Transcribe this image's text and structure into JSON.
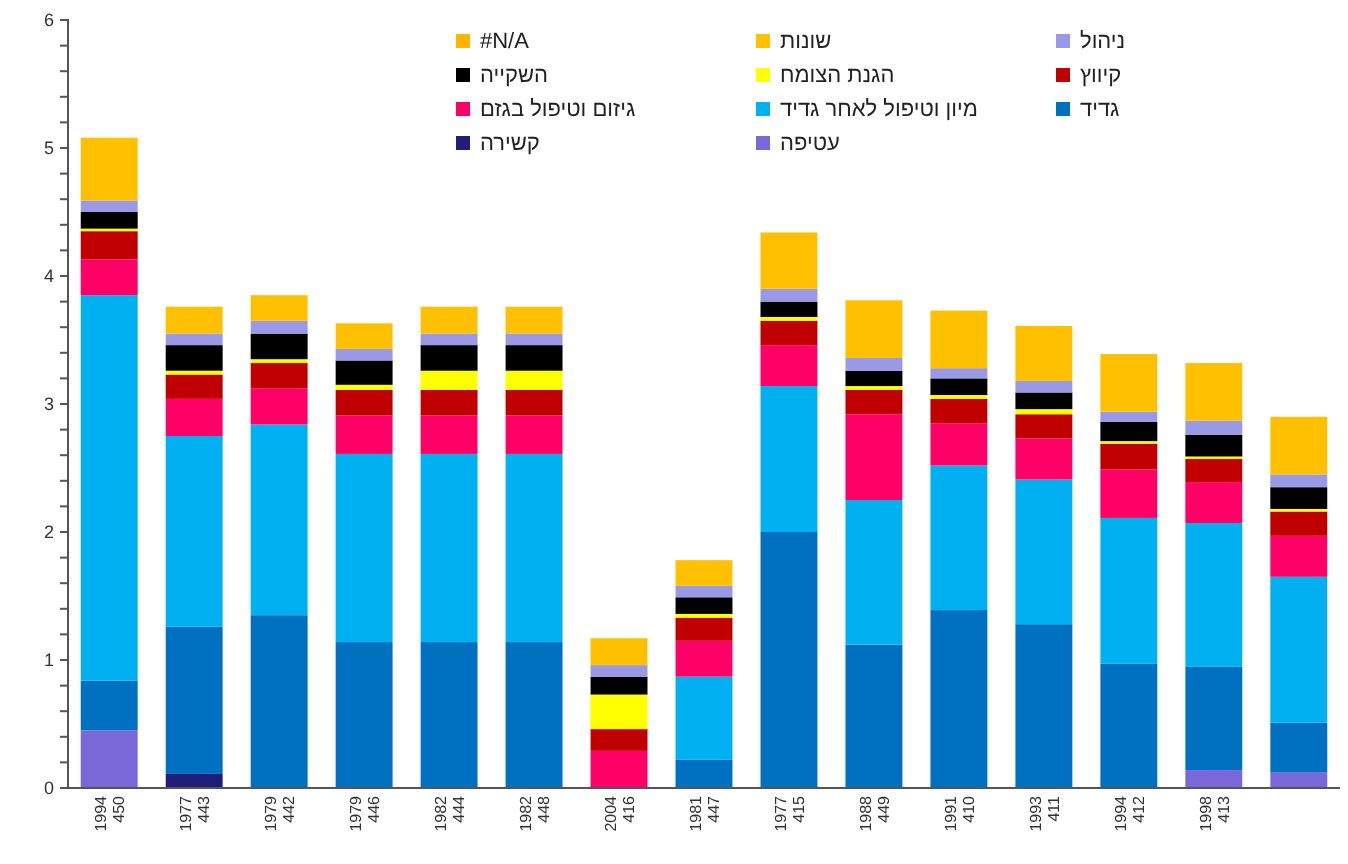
{
  "chart_data": {
    "type": "bar",
    "stacked": true,
    "categories": [
      "1994\n450",
      "1977\n443",
      "1979\n442",
      "1979\n446",
      "1982\n444",
      "1982\n448",
      "2004\n416",
      "1981\n447",
      "1977\n415",
      "1988\n449",
      "1991\n410",
      "1993\n411",
      "1994\n412",
      "1998\n413",
      null
    ],
    "series": [
      {
        "name": "עטיפה",
        "color": "#7b68d8",
        "values": [
          0.45,
          0,
          0,
          0,
          0,
          0,
          0,
          0,
          0,
          0,
          0,
          0,
          0,
          0.14,
          0.12
        ]
      },
      {
        "name": "קשירה",
        "color": "#1f1f7a",
        "values": [
          0,
          0.11,
          0,
          0,
          0,
          0,
          0,
          0,
          0,
          0,
          0,
          0,
          0,
          0,
          0
        ]
      },
      {
        "name": "גדיד",
        "color": "#0070c0",
        "values": [
          0.39,
          1.15,
          1.35,
          1.14,
          1.14,
          1.14,
          0,
          0.22,
          2.0,
          1.12,
          1.39,
          1.28,
          0.97,
          0.81,
          0.39
        ]
      },
      {
        "name": "מיון וטיפול לאחר גדיד",
        "color": "#00b0f0",
        "values": [
          3.01,
          1.49,
          1.49,
          1.47,
          1.47,
          1.47,
          0,
          0.65,
          1.14,
          1.13,
          1.13,
          1.13,
          1.14,
          1.12,
          1.14
        ]
      },
      {
        "name": "גיזום וטיפול בגזם",
        "color": "#ff0066",
        "values": [
          0.28,
          0.29,
          0.28,
          0.3,
          0.3,
          0.3,
          0.29,
          0.28,
          0.32,
          0.67,
          0.33,
          0.32,
          0.38,
          0.32,
          0.32
        ]
      },
      {
        "name": "קיווץ",
        "color": "#c00000",
        "values": [
          0.22,
          0.19,
          0.2,
          0.2,
          0.2,
          0.2,
          0.17,
          0.18,
          0.19,
          0.19,
          0.19,
          0.19,
          0.2,
          0.18,
          0.19
        ]
      },
      {
        "name": "הגנת הצומח",
        "color": "#ffff00",
        "values": [
          0.02,
          0.03,
          0.03,
          0.04,
          0.15,
          0.15,
          0.27,
          0.03,
          0.03,
          0.03,
          0.03,
          0.04,
          0.02,
          0.02,
          0.02
        ]
      },
      {
        "name": "השקייה",
        "color": "#000000",
        "values": [
          0.13,
          0.2,
          0.2,
          0.19,
          0.2,
          0.2,
          0.14,
          0.13,
          0.12,
          0.12,
          0.13,
          0.13,
          0.15,
          0.17,
          0.17
        ]
      },
      {
        "name": "ניהול",
        "color": "#9999e6",
        "values": [
          0.09,
          0.09,
          0.1,
          0.09,
          0.09,
          0.09,
          0.09,
          0.09,
          0.1,
          0.1,
          0.08,
          0.09,
          0.08,
          0.11,
          0.1
        ]
      },
      {
        "name": "שונות",
        "color": "#ffc000",
        "values": [
          0.49,
          0.21,
          0.2,
          0.2,
          0.21,
          0.21,
          0.21,
          0.2,
          0.44,
          0.45,
          0.45,
          0.43,
          0.45,
          0.45,
          0.45
        ]
      },
      {
        "name": "#N/A",
        "color": "#ffb400",
        "values": [
          0,
          0,
          0,
          0,
          0,
          0,
          0,
          0,
          0,
          0,
          0,
          0,
          0,
          0,
          0
        ]
      }
    ],
    "ylim": [
      0,
      6
    ],
    "yticks": [
      0,
      {
        "value": 0.2,
        "label": null
      },
      {
        "value": 0.4,
        "label": null
      },
      {
        "value": 0.6,
        "label": null
      },
      {
        "value": 0.8,
        "label": null
      },
      1,
      {
        "value": 1.2,
        "label": null
      },
      {
        "value": 1.4,
        "label": null
      },
      {
        "value": 1.6,
        "label": null
      },
      {
        "value": 1.8,
        "label": null
      },
      2,
      {
        "value": 2.2,
        "label": null
      },
      {
        "value": 2.4,
        "label": null
      },
      {
        "value": 2.6,
        "label": null
      },
      {
        "value": 2.8,
        "label": null
      },
      3,
      {
        "value": 3.2,
        "label": null
      },
      {
        "value": 3.4,
        "label": null
      },
      {
        "value": 3.6,
        "label": null
      },
      {
        "value": 3.8,
        "label": null
      },
      4,
      {
        "value": 4.2,
        "label": null
      },
      {
        "value": 4.4,
        "label": null
      },
      {
        "value": 4.6,
        "label": null
      },
      {
        "value": 4.8,
        "label": null
      },
      5,
      {
        "value": 5.2,
        "label": null
      },
      {
        "value": 5.4,
        "label": null
      },
      {
        "value": 5.6,
        "label": null
      },
      {
        "value": 5.8,
        "label": null
      },
      6
    ],
    "legend": "top right",
    "grid": false
  }
}
